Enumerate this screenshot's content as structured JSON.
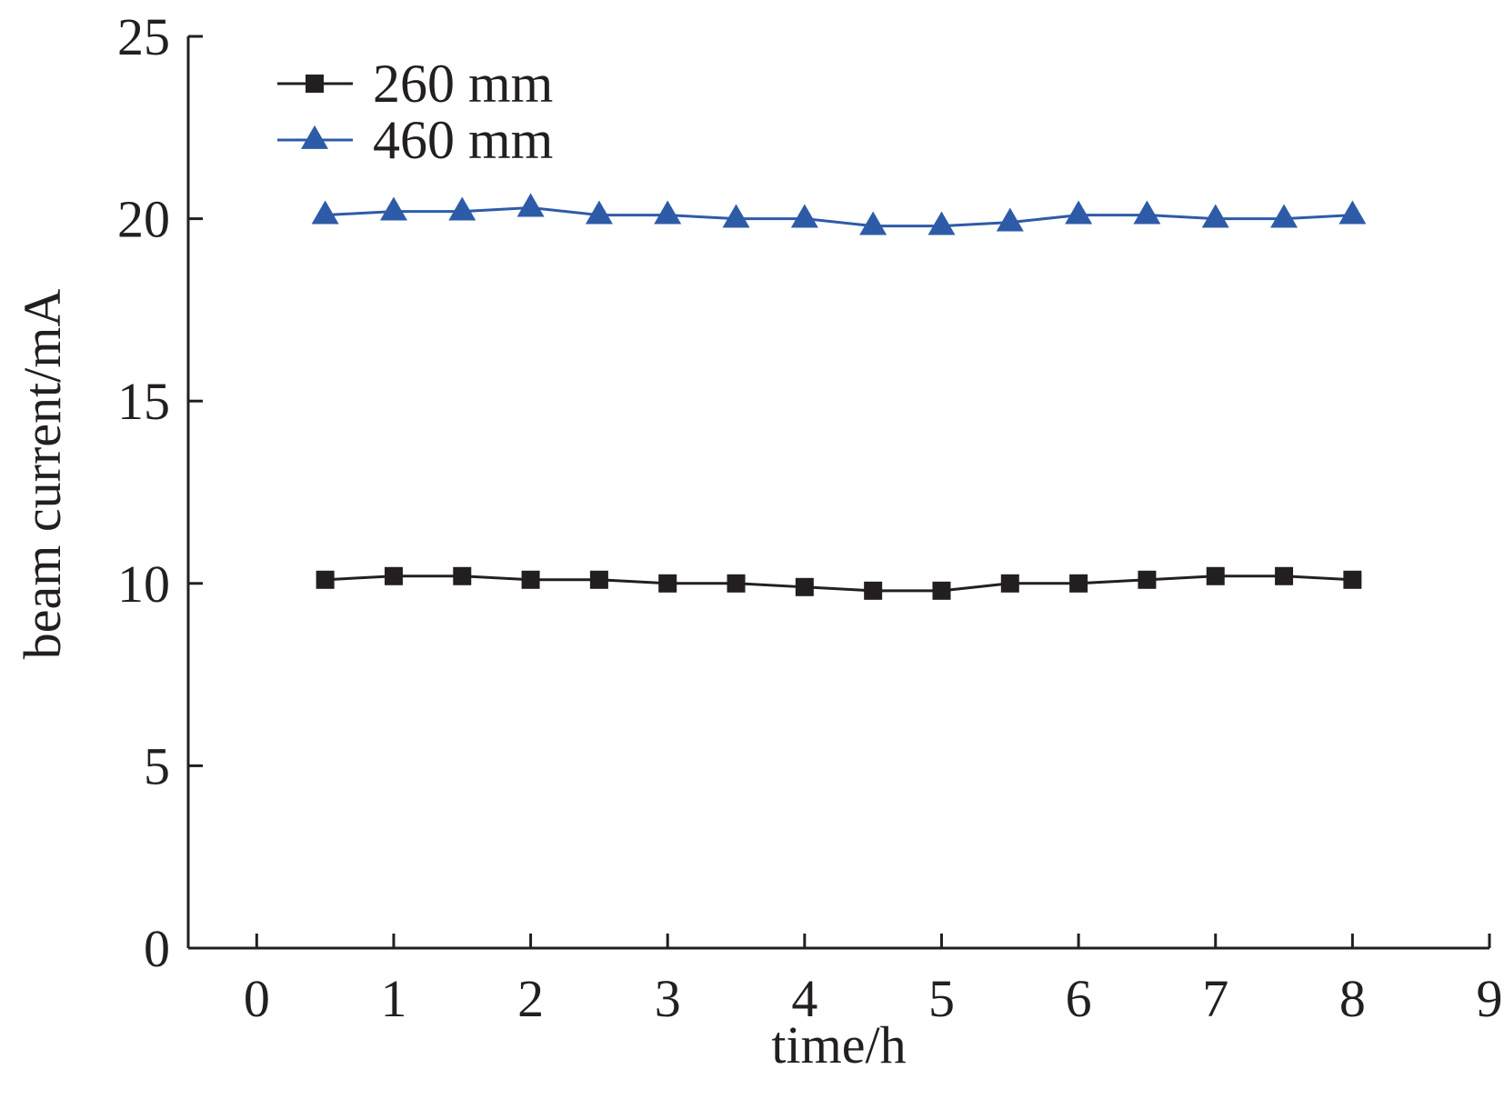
{
  "chart_data": {
    "type": "line",
    "title": "",
    "xlabel": "time/h",
    "ylabel": "beam current/mA",
    "xlim": [
      -0.5,
      9
    ],
    "ylim": [
      0,
      25
    ],
    "xticks": [
      0,
      1,
      2,
      3,
      4,
      5,
      6,
      7,
      8,
      9
    ],
    "yticks": [
      0,
      5,
      10,
      15,
      20,
      25
    ],
    "grid": false,
    "legend_position": "top-left",
    "series": [
      {
        "name": "260 mm",
        "marker": "square",
        "color": "#231f20",
        "x": [
          0.5,
          1,
          1.5,
          2,
          2.5,
          3,
          3.5,
          4,
          4.5,
          5,
          5.5,
          6,
          6.5,
          7,
          7.5,
          8
        ],
        "y": [
          10.1,
          10.2,
          10.2,
          10.1,
          10.1,
          10.0,
          10.0,
          9.9,
          9.8,
          9.8,
          10.0,
          10.0,
          10.1,
          10.2,
          10.2,
          10.1
        ]
      },
      {
        "name": "460 mm",
        "marker": "triangle",
        "color": "#2e5ba8",
        "x": [
          0.5,
          1,
          1.5,
          2,
          2.5,
          3,
          3.5,
          4,
          4.5,
          5,
          5.5,
          6,
          6.5,
          7,
          7.5,
          8
        ],
        "y": [
          20.1,
          20.2,
          20.2,
          20.3,
          20.1,
          20.1,
          20.0,
          20.0,
          19.8,
          19.8,
          19.9,
          20.1,
          20.1,
          20.0,
          20.0,
          20.1
        ]
      }
    ]
  }
}
